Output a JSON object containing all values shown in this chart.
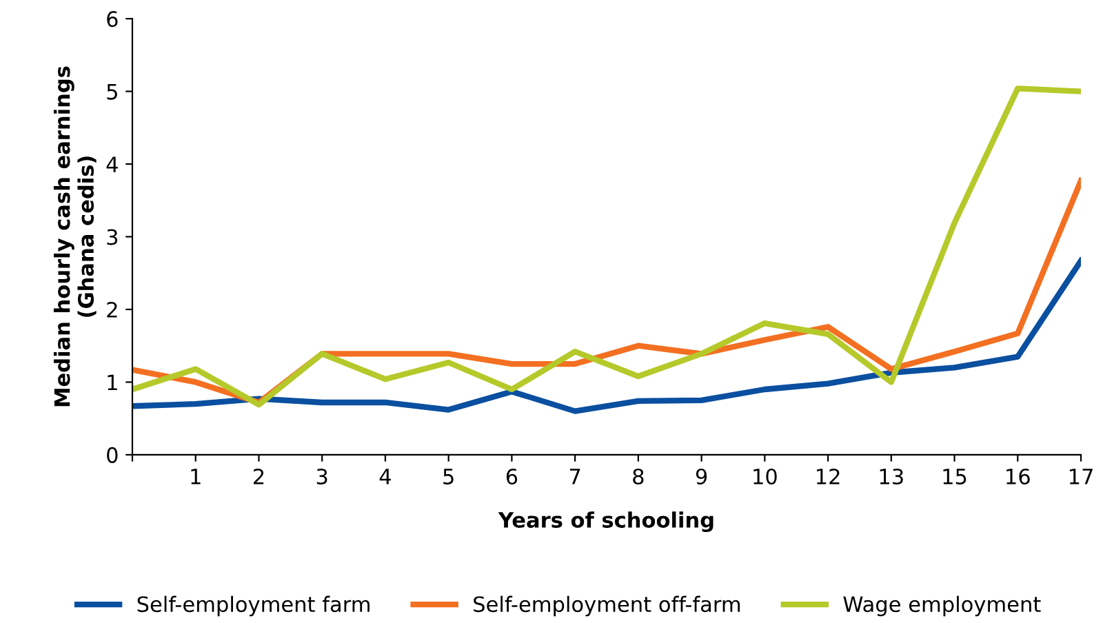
{
  "chart_data": {
    "type": "line",
    "xlabel": "Years of schooling",
    "ylabel": "Median hourly cash earnings\n(Ghana cedis)",
    "categories": [
      null,
      "1",
      "2",
      "3",
      "4",
      "5",
      "6",
      "7",
      "8",
      "9",
      "10",
      "12",
      "13",
      "15",
      "16",
      "17"
    ],
    "series": [
      {
        "name": "Self-employment farm",
        "color": "#0a4fa0",
        "values": [
          0.67,
          0.7,
          0.77,
          0.72,
          0.72,
          0.62,
          0.87,
          0.6,
          0.74,
          0.75,
          0.9,
          0.98,
          1.13,
          1.2,
          1.35,
          2.67
        ]
      },
      {
        "name": "Self-employment off-farm",
        "color": "#f36f21",
        "values": [
          1.17,
          1.0,
          0.72,
          1.39,
          1.39,
          1.39,
          1.25,
          1.25,
          1.5,
          1.39,
          1.58,
          1.76,
          1.18,
          1.42,
          1.67,
          3.77
        ]
      },
      {
        "name": "Wage employment",
        "color": "#b5c92a",
        "values": [
          0.9,
          1.18,
          0.69,
          1.39,
          1.04,
          1.27,
          0.9,
          1.42,
          1.08,
          1.39,
          1.81,
          1.66,
          1.0,
          3.19,
          5.04,
          5.0
        ]
      }
    ],
    "ylim": [
      0,
      6
    ],
    "yticks": [
      0,
      1,
      2,
      3,
      4,
      5,
      6
    ],
    "grid": false,
    "legend": "bottom",
    "marker": "none",
    "line_style": "solid"
  }
}
